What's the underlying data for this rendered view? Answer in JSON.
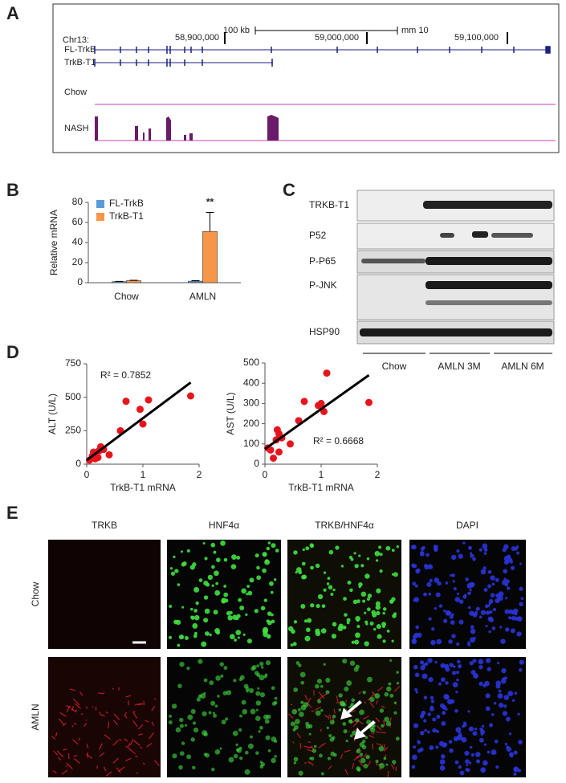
{
  "panel_labels": [
    "A",
    "B",
    "C",
    "D",
    "E"
  ],
  "genome": {
    "scale_label": "100 kb",
    "assembly": "mm 10",
    "chrom": "Chr13:",
    "positions": [
      "58,900,000",
      "59,000,000",
      "59,100,000"
    ],
    "genes": [
      "FL-TrkB",
      "TrkB-T1"
    ],
    "tracks": [
      "Chow",
      "NASH"
    ]
  },
  "chart_data": [
    {
      "type": "bar",
      "y_label": "Relative mRNA",
      "categories": [
        "Chow",
        "AMLN"
      ],
      "series": [
        {
          "name": "FL-TrkB",
          "color": "#5b9bd5",
          "values": [
            1,
            1.5
          ],
          "errors": [
            0.3,
            0.5
          ]
        },
        {
          "name": "TrkB-T1",
          "color": "#f79646",
          "values": [
            2,
            51
          ],
          "errors": [
            0.4,
            19
          ]
        }
      ],
      "annotation": "**",
      "ylim": [
        0,
        80
      ],
      "yticks": [
        0,
        20,
        40,
        60,
        80
      ],
      "legend": "top-left"
    },
    {
      "type": "scatter",
      "x_label": "TrkB-T1 mRNA",
      "y_label": "ALT (U/L)",
      "color": "#e8141c",
      "x": [
        0.05,
        0.1,
        0.12,
        0.15,
        0.2,
        0.22,
        0.25,
        0.3,
        0.4,
        0.6,
        0.7,
        0.95,
        1.0,
        1.1,
        1.85
      ],
      "values": [
        30,
        60,
        90,
        40,
        50,
        100,
        130,
        110,
        70,
        250,
        470,
        410,
        300,
        480,
        510
      ],
      "annotation": "R² = 0.7852",
      "trendline": {
        "x": [
          0,
          1.85
        ],
        "y": [
          30,
          610
        ]
      },
      "xlim": [
        0,
        2
      ],
      "xticks": [
        0,
        1,
        2
      ],
      "ylim": [
        0,
        750
      ],
      "yticks": [
        0,
        250,
        500,
        750
      ]
    },
    {
      "type": "scatter",
      "x_label": "TrkB-T1 mRNA",
      "y_label": "AST (U/L)",
      "color": "#e8141c",
      "x": [
        0.05,
        0.1,
        0.15,
        0.2,
        0.22,
        0.25,
        0.25,
        0.3,
        0.45,
        0.6,
        0.7,
        0.95,
        1.0,
        1.05,
        1.1,
        1.85
      ],
      "values": [
        80,
        70,
        30,
        120,
        170,
        60,
        150,
        130,
        100,
        215,
        310,
        290,
        300,
        260,
        450,
        305
      ],
      "annotation": "R² = 0.6668",
      "trendline": {
        "x": [
          0,
          1.85
        ],
        "y": [
          75,
          440
        ]
      },
      "xlim": [
        0,
        2
      ],
      "xticks": [
        0,
        1,
        2
      ],
      "ylim": [
        0,
        500
      ],
      "yticks": [
        0,
        100,
        200,
        300,
        400,
        500
      ]
    }
  ],
  "western": {
    "proteins": [
      "TRKB-T1",
      "P52",
      "P-P65",
      "P-JNK",
      "HSP90"
    ],
    "groups": [
      "Chow",
      "AMLN 3M",
      "AMLN 6M"
    ]
  },
  "imaging": {
    "columns": [
      "TRKB",
      "HNF4α",
      "TRKB/HNF4α",
      "DAPI"
    ],
    "rows": [
      "Chow",
      "AMLN"
    ]
  }
}
